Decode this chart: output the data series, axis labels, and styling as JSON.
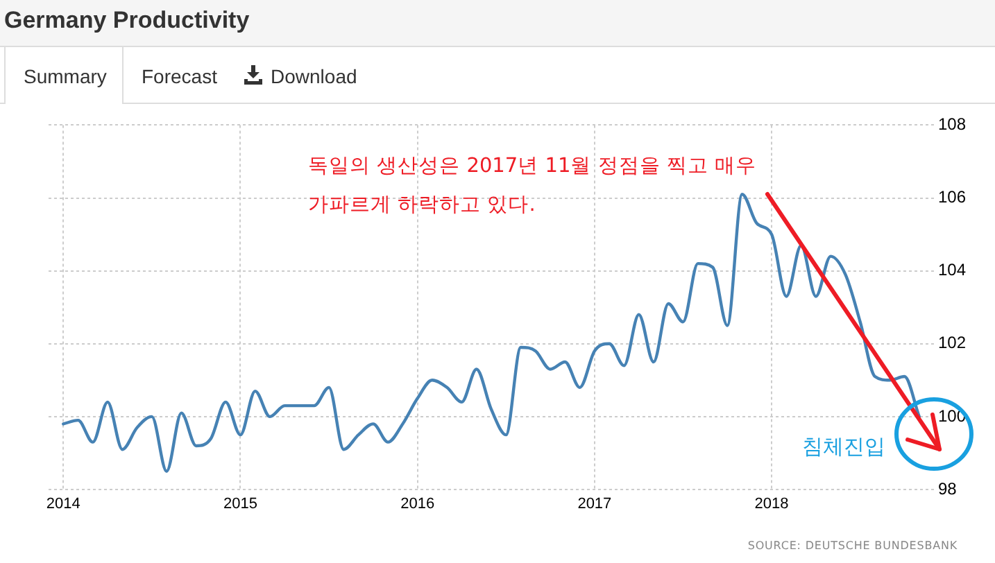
{
  "chart_data": {
    "type": "line",
    "title": "Germany Productivity",
    "annotations": [
      "Summary",
      "Forecast",
      "Download",
      "독일의 생산성은 2017년 11월 정점을 찍고 매우 가파르게 하락하고 있다.",
      "침체진입",
      "SOURCE: DEUTSCHE BUNDESBANK"
    ],
    "x": [
      "2014-01",
      "2014-02",
      "2014-03",
      "2014-04",
      "2014-05",
      "2014-06",
      "2014-07",
      "2014-08",
      "2014-09",
      "2014-10",
      "2014-11",
      "2014-12",
      "2015-01",
      "2015-02",
      "2015-03",
      "2015-04",
      "2015-05",
      "2015-06",
      "2015-07",
      "2015-08",
      "2015-09",
      "2015-10",
      "2015-11",
      "2015-12",
      "2016-01",
      "2016-02",
      "2016-03",
      "2016-04",
      "2016-05",
      "2016-06",
      "2016-07",
      "2016-08",
      "2016-09",
      "2016-10",
      "2016-11",
      "2016-12",
      "2017-01",
      "2017-02",
      "2017-03",
      "2017-04",
      "2017-05",
      "2017-06",
      "2017-07",
      "2017-08",
      "2017-09",
      "2017-10",
      "2017-11",
      "2017-12",
      "2018-01",
      "2018-02",
      "2018-03",
      "2018-04",
      "2018-05",
      "2018-06",
      "2018-07",
      "2018-08",
      "2018-09",
      "2018-10",
      "2018-11"
    ],
    "values": [
      99.8,
      99.9,
      99.3,
      100.4,
      99.1,
      99.7,
      100.0,
      98.5,
      100.1,
      99.2,
      99.4,
      100.4,
      99.5,
      100.7,
      100.0,
      100.3,
      100.3,
      100.3,
      100.8,
      99.1,
      99.5,
      99.8,
      99.3,
      99.8,
      100.5,
      101.0,
      100.8,
      100.4,
      101.3,
      100.2,
      99.5,
      101.9,
      101.8,
      101.3,
      101.5,
      100.8,
      101.8,
      102.0,
      101.4,
      102.8,
      101.5,
      103.1,
      102.6,
      104.2,
      104.1,
      102.5,
      106.1,
      105.3,
      105.0,
      103.3,
      104.7,
      103.3,
      104.4,
      103.9,
      102.6,
      101.1,
      101.0,
      101.1,
      100.0
    ],
    "color": "#4682b4",
    "xlim": [
      "2013-12",
      "2018-12"
    ],
    "xticks": [
      "2014",
      "2015",
      "2016",
      "2017",
      "2018"
    ],
    "ylim": [
      98,
      108
    ],
    "yticks": [
      98,
      100,
      102,
      104,
      106,
      108
    ],
    "grid": true
  }
}
